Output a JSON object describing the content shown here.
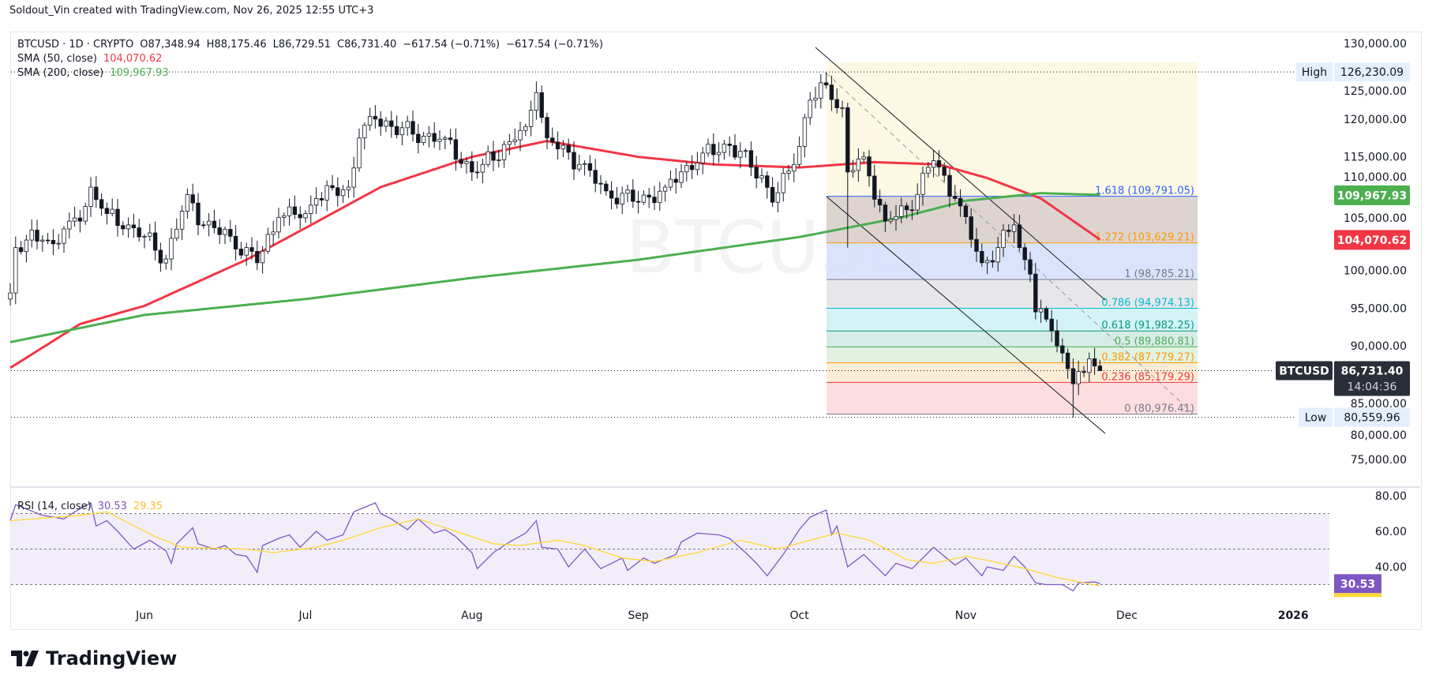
{
  "credit": "Soldout_Vin created with TradingView.com, Nov 26, 2025 12:55 UTC+3",
  "legend": {
    "symbol": "BTCUSD · 1D · CRYPTO",
    "open": "O87,348.94",
    "high": "H88,175.46",
    "low": "L86,729.51",
    "close": "C86,731.40",
    "change1": "−617.54 (−0.71%)",
    "change2": "−617.54 (−0.71%)",
    "sma50_label": "SMA (50, close)",
    "sma50_value": "104,070.62",
    "sma200_label": "SMA (200, close)",
    "sma200_value": "109,967.93",
    "rsi_label": "RSI (14, close)",
    "rsi_value": "30.53",
    "rsi_ma_value": "29.35"
  },
  "watermark": "BTCUSD",
  "logo_text": "TradingView",
  "colors": {
    "up": "#089981",
    "down": "#131722",
    "sma50": "#f23645",
    "sma200": "#4caf50",
    "rsi": "#7e57c2",
    "rsi_ma": "#fdd835"
  },
  "badges": {
    "high_label": "High",
    "high_value": "126,230.09",
    "low_label": "Low",
    "low_value": "80,559.96",
    "sma200": "109,967.93",
    "sma50": "104,070.62",
    "symbol": "BTCUSD",
    "last_price": "86,731.40",
    "countdown": "14:04:36",
    "rsi": "30.53"
  },
  "chart_data": [
    {
      "type": "candlestick",
      "title": "BTCUSD · 1D · CRYPTO",
      "ylim": [
        72000,
        131000
      ],
      "y_ticks": [
        "130,000.00",
        "125,000.00",
        "120,000.00",
        "115,000.00",
        "110,000.00",
        "105,000.00",
        "100,000.00",
        "95,000.00",
        "90,000.00",
        "85,000.00",
        "80,000.00",
        "75,000.00"
      ],
      "x_ticks": [
        "Jun",
        "Jul",
        "Aug",
        "Sep",
        "Oct",
        "Nov",
        "Dec",
        "2026"
      ],
      "last_candle": {
        "date": "2025-11-26",
        "open": 87348.94,
        "high": 88175.46,
        "low": 86729.51,
        "close": 86731.4
      },
      "high": 126230.09,
      "low": 80559.96,
      "close_keypoints": [
        [
          "2025-05-07",
          97000
        ],
        [
          "2025-05-08",
          103000
        ],
        [
          "2025-05-10",
          104000
        ],
        [
          "2025-05-13",
          104000
        ],
        [
          "2025-05-15",
          103500
        ],
        [
          "2025-05-18",
          106500
        ],
        [
          "2025-05-20",
          106500
        ],
        [
          "2025-05-22",
          111000
        ],
        [
          "2025-05-25",
          107500
        ],
        [
          "2025-05-29",
          106000
        ],
        [
          "2025-06-01",
          104500
        ],
        [
          "2025-06-05",
          101500
        ],
        [
          "2025-06-09",
          110000
        ],
        [
          "2025-06-12",
          106000
        ],
        [
          "2025-06-17",
          104500
        ],
        [
          "2025-06-22",
          101000
        ],
        [
          "2025-06-26",
          107000
        ],
        [
          "2025-07-01",
          107500
        ],
        [
          "2025-07-03",
          109500
        ],
        [
          "2025-07-09",
          111000
        ],
        [
          "2025-07-11",
          117500
        ],
        [
          "2025-07-14",
          120000
        ],
        [
          "2025-07-21",
          118000
        ],
        [
          "2025-07-27",
          117500
        ],
        [
          "2025-08-01",
          113000
        ],
        [
          "2025-08-03",
          114000
        ],
        [
          "2025-08-08",
          117000
        ],
        [
          "2025-08-11",
          119000
        ],
        [
          "2025-08-13",
          123500
        ],
        [
          "2025-08-15",
          117500
        ],
        [
          "2025-08-21",
          114000
        ],
        [
          "2025-08-26",
          110500
        ],
        [
          "2025-09-01",
          109000
        ],
        [
          "2025-09-06",
          111000
        ],
        [
          "2025-09-13",
          115500
        ],
        [
          "2025-09-18",
          116500
        ],
        [
          "2025-09-24",
          112500
        ],
        [
          "2025-09-26",
          109000
        ],
        [
          "2025-09-30",
          114000
        ],
        [
          "2025-10-03",
          122500
        ],
        [
          "2025-10-06",
          124500
        ],
        [
          "2025-10-09",
          121500
        ],
        [
          "2025-10-10",
          113000
        ],
        [
          "2025-10-13",
          115000
        ],
        [
          "2025-10-17",
          106500
        ],
        [
          "2025-10-21",
          108000
        ],
        [
          "2025-10-26",
          114500
        ],
        [
          "2025-10-30",
          109500
        ],
        [
          "2025-11-04",
          101000
        ],
        [
          "2025-11-07",
          103000
        ],
        [
          "2025-11-10",
          106000
        ],
        [
          "2025-11-11",
          103000
        ],
        [
          "2025-11-13",
          99500
        ],
        [
          "2025-11-14",
          94500
        ],
        [
          "2025-11-17",
          92000
        ],
        [
          "2025-11-20",
          87000
        ],
        [
          "2025-11-21",
          85000
        ],
        [
          "2025-11-23",
          86500
        ],
        [
          "2025-11-24",
          88300
        ],
        [
          "2025-11-25",
          87350
        ],
        [
          "2025-11-26",
          86731.4
        ]
      ],
      "series": [
        {
          "name": "SMA (50, close)",
          "points": [
            [
              "2025-05-07",
              87100
            ],
            [
              "2025-05-20",
              92900
            ],
            [
              "2025-06-01",
              95300
            ],
            [
              "2025-06-20",
              101400
            ],
            [
              "2025-07-01",
              105600
            ],
            [
              "2025-07-15",
              111000
            ],
            [
              "2025-08-01",
              115000
            ],
            [
              "2025-08-15",
              117100
            ],
            [
              "2025-09-01",
              115000
            ],
            [
              "2025-09-15",
              114000
            ],
            [
              "2025-10-01",
              113600
            ],
            [
              "2025-10-15",
              114300
            ],
            [
              "2025-10-27",
              114000
            ],
            [
              "2025-11-05",
              112200
            ],
            [
              "2025-11-15",
              109500
            ],
            [
              "2025-11-26",
              104070.62
            ]
          ]
        },
        {
          "name": "SMA (200, close)",
          "points": [
            [
              "2025-05-07",
              90500
            ],
            [
              "2025-06-01",
              94100
            ],
            [
              "2025-07-01",
              96200
            ],
            [
              "2025-08-01",
              99000
            ],
            [
              "2025-09-01",
              101400
            ],
            [
              "2025-10-01",
              104400
            ],
            [
              "2025-10-20",
              107000
            ],
            [
              "2025-11-01",
              109200
            ],
            [
              "2025-11-15",
              110200
            ],
            [
              "2025-11-26",
              109967.93
            ]
          ]
        }
      ],
      "fibonacci": [
        {
          "level": "1.618",
          "price": 109791.05,
          "label": "1.618 (109,791.05)",
          "color": "#2962ff",
          "fill": "#d7ccc8"
        },
        {
          "level": "1.272",
          "price": 103629.21,
          "label": "1.272 (103,629.21)",
          "color": "#ff9800",
          "fill": "#d3defc"
        },
        {
          "level": "1",
          "price": 98785.21,
          "label": "1 (98,785.21)",
          "color": "#787b86",
          "fill": "#e3e3e6"
        },
        {
          "level": "0.786",
          "price": 94974.13,
          "label": "0.786 (94,974.13)",
          "color": "#00bcd4",
          "fill": "#ccf1f4"
        },
        {
          "level": "0.618",
          "price": 91982.25,
          "label": "0.618 (91,982.25)",
          "color": "#089981",
          "fill": "#cfe9e3"
        },
        {
          "level": "0.5",
          "price": 89880.81,
          "label": "0.5 (89,880.81)",
          "color": "#4caf50",
          "fill": "#dcf0dc"
        },
        {
          "level": "0.382",
          "price": 87779.27,
          "label": "0.382 (87,779.27)",
          "color": "#ff9800",
          "fill": "#fde9cf"
        },
        {
          "level": "0.236",
          "price": 85179.29,
          "label": "0.236 (85,179.29)",
          "color": "#f23645",
          "fill": "#fbd8db"
        },
        {
          "level": "0",
          "price": 80976.41,
          "label": "0 (80,976.41)",
          "color": "#787b86",
          "fill": null
        }
      ]
    },
    {
      "type": "line",
      "title": "RSI (14, close)",
      "ylim": [
        23,
        82
      ],
      "y_ticks": [
        "80.00",
        "60.00",
        "40.00"
      ],
      "bands": [
        70,
        50,
        30
      ],
      "series": [
        {
          "name": "RSI",
          "points": [
            [
              "2025-05-07",
              66
            ],
            [
              "2025-05-08",
              75
            ],
            [
              "2025-05-13",
              69
            ],
            [
              "2025-05-17",
              67
            ],
            [
              "2025-05-19",
              71
            ],
            [
              "2025-05-22",
              76
            ],
            [
              "2025-05-23",
              63
            ],
            [
              "2025-05-25",
              66
            ],
            [
              "2025-05-27",
              60
            ],
            [
              "2025-05-30",
              50
            ],
            [
              "2025-06-02",
              55
            ],
            [
              "2025-06-05",
              49
            ],
            [
              "2025-06-06",
              42
            ],
            [
              "2025-06-07",
              53
            ],
            [
              "2025-06-10",
              62
            ],
            [
              "2025-06-11",
              53
            ],
            [
              "2025-06-14",
              50
            ],
            [
              "2025-06-16",
              52
            ],
            [
              "2025-06-18",
              47
            ],
            [
              "2025-06-20",
              46
            ],
            [
              "2025-06-22",
              37
            ],
            [
              "2025-06-23",
              52
            ],
            [
              "2025-06-26",
              56
            ],
            [
              "2025-06-28",
              58
            ],
            [
              "2025-06-30",
              51
            ],
            [
              "2025-07-03",
              60
            ],
            [
              "2025-07-05",
              55
            ],
            [
              "2025-07-08",
              58
            ],
            [
              "2025-07-10",
              71
            ],
            [
              "2025-07-14",
              76
            ],
            [
              "2025-07-15",
              70
            ],
            [
              "2025-07-17",
              67
            ],
            [
              "2025-07-20",
              61
            ],
            [
              "2025-07-22",
              67
            ],
            [
              "2025-07-25",
              59
            ],
            [
              "2025-07-27",
              61
            ],
            [
              "2025-07-29",
              57
            ],
            [
              "2025-08-01",
              48
            ],
            [
              "2025-08-02",
              39
            ],
            [
              "2025-08-05",
              48
            ],
            [
              "2025-08-08",
              54
            ],
            [
              "2025-08-11",
              59
            ],
            [
              "2025-08-13",
              66
            ],
            [
              "2025-08-14",
              51
            ],
            [
              "2025-08-17",
              50
            ],
            [
              "2025-08-19",
              40
            ],
            [
              "2025-08-22",
              50
            ],
            [
              "2025-08-25",
              39
            ],
            [
              "2025-08-29",
              45
            ],
            [
              "2025-08-30",
              38
            ],
            [
              "2025-09-02",
              45
            ],
            [
              "2025-09-04",
              42
            ],
            [
              "2025-09-08",
              47
            ],
            [
              "2025-09-09",
              54
            ],
            [
              "2025-09-12",
              59
            ],
            [
              "2025-09-16",
              58
            ],
            [
              "2025-09-18",
              56
            ],
            [
              "2025-09-21",
              48
            ],
            [
              "2025-09-23",
              42
            ],
            [
              "2025-09-25",
              35
            ],
            [
              "2025-09-28",
              47
            ],
            [
              "2025-10-01",
              61
            ],
            [
              "2025-10-03",
              68
            ],
            [
              "2025-10-06",
              72
            ],
            [
              "2025-10-07",
              58
            ],
            [
              "2025-10-08",
              63
            ],
            [
              "2025-10-10",
              40
            ],
            [
              "2025-10-13",
              47
            ],
            [
              "2025-10-17",
              35
            ],
            [
              "2025-10-19",
              42
            ],
            [
              "2025-10-22",
              39
            ],
            [
              "2025-10-26",
              51
            ],
            [
              "2025-10-30",
              41
            ],
            [
              "2025-11-01",
              45
            ],
            [
              "2025-11-04",
              35
            ],
            [
              "2025-11-05",
              40
            ],
            [
              "2025-11-08",
              38
            ],
            [
              "2025-11-10",
              46
            ],
            [
              "2025-11-12",
              40
            ],
            [
              "2025-11-14",
              31
            ],
            [
              "2025-11-16",
              30
            ],
            [
              "2025-11-19",
              30
            ],
            [
              "2025-11-21",
              26.5
            ],
            [
              "2025-11-22",
              31
            ],
            [
              "2025-11-25",
              31.5
            ],
            [
              "2025-11-26",
              30.53
            ]
          ]
        },
        {
          "name": "RSI MA",
          "points": [
            [
              "2025-05-07",
              66
            ],
            [
              "2025-05-20",
              69
            ],
            [
              "2025-05-25",
              71
            ],
            [
              "2025-06-03",
              57
            ],
            [
              "2025-06-08",
              51
            ],
            [
              "2025-06-20",
              50
            ],
            [
              "2025-06-25",
              48
            ],
            [
              "2025-07-03",
              51
            ],
            [
              "2025-07-08",
              55
            ],
            [
              "2025-07-15",
              62
            ],
            [
              "2025-07-22",
              67
            ],
            [
              "2025-07-28",
              61
            ],
            [
              "2025-08-05",
              53
            ],
            [
              "2025-08-10",
              52
            ],
            [
              "2025-08-17",
              55
            ],
            [
              "2025-08-22",
              52
            ],
            [
              "2025-08-29",
              45
            ],
            [
              "2025-09-04",
              43
            ],
            [
              "2025-09-12",
              48
            ],
            [
              "2025-09-20",
              55
            ],
            [
              "2025-09-27",
              50
            ],
            [
              "2025-10-03",
              55
            ],
            [
              "2025-10-08",
              59
            ],
            [
              "2025-10-14",
              55
            ],
            [
              "2025-10-21",
              44
            ],
            [
              "2025-10-26",
              42
            ],
            [
              "2025-11-01",
              46
            ],
            [
              "2025-11-06",
              43
            ],
            [
              "2025-11-12",
              39
            ],
            [
              "2025-11-18",
              34
            ],
            [
              "2025-11-23",
              31
            ],
            [
              "2025-11-26",
              29.35
            ]
          ]
        }
      ]
    }
  ]
}
